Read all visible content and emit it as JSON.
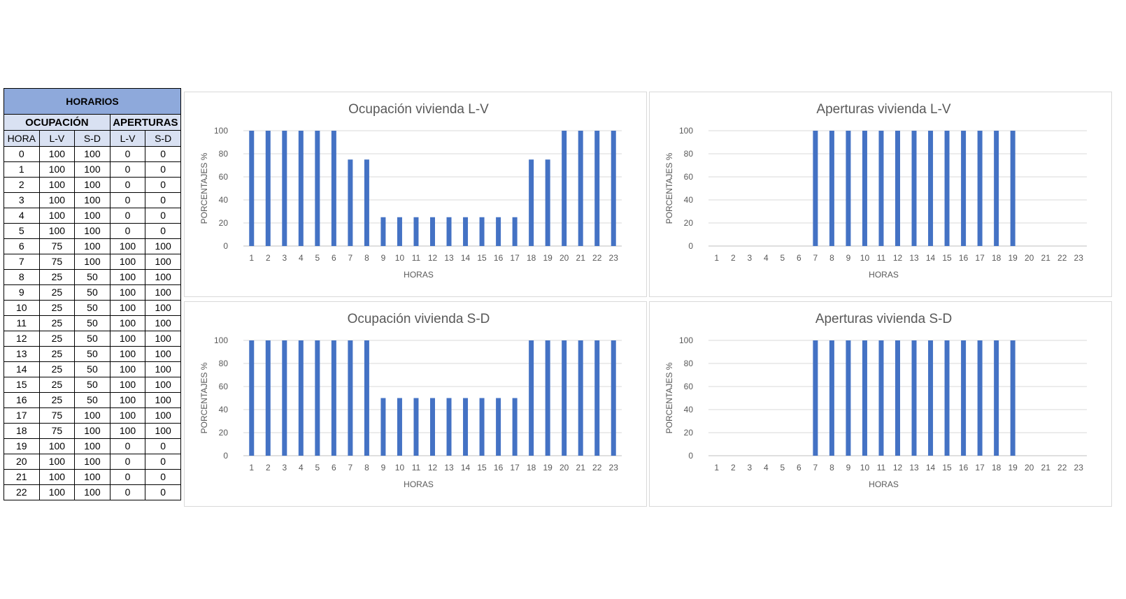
{
  "table": {
    "title": "HORARIOS",
    "groups": [
      "OCUPACIÓN",
      "APERTURAS"
    ],
    "columns": [
      "HORA",
      "L-V",
      "S-D",
      "L-V",
      "S-D"
    ],
    "rows": [
      [
        "0",
        "100",
        "100",
        "0",
        "0"
      ],
      [
        "1",
        "100",
        "100",
        "0",
        "0"
      ],
      [
        "2",
        "100",
        "100",
        "0",
        "0"
      ],
      [
        "3",
        "100",
        "100",
        "0",
        "0"
      ],
      [
        "4",
        "100",
        "100",
        "0",
        "0"
      ],
      [
        "5",
        "100",
        "100",
        "0",
        "0"
      ],
      [
        "6",
        "75",
        "100",
        "100",
        "100"
      ],
      [
        "7",
        "75",
        "100",
        "100",
        "100"
      ],
      [
        "8",
        "25",
        "50",
        "100",
        "100"
      ],
      [
        "9",
        "25",
        "50",
        "100",
        "100"
      ],
      [
        "10",
        "25",
        "50",
        "100",
        "100"
      ],
      [
        "11",
        "25",
        "50",
        "100",
        "100"
      ],
      [
        "12",
        "25",
        "50",
        "100",
        "100"
      ],
      [
        "13",
        "25",
        "50",
        "100",
        "100"
      ],
      [
        "14",
        "25",
        "50",
        "100",
        "100"
      ],
      [
        "15",
        "25",
        "50",
        "100",
        "100"
      ],
      [
        "16",
        "25",
        "50",
        "100",
        "100"
      ],
      [
        "17",
        "75",
        "100",
        "100",
        "100"
      ],
      [
        "18",
        "75",
        "100",
        "100",
        "100"
      ],
      [
        "19",
        "100",
        "100",
        "0",
        "0"
      ],
      [
        "20",
        "100",
        "100",
        "0",
        "0"
      ],
      [
        "21",
        "100",
        "100",
        "0",
        "0"
      ],
      [
        "22",
        "100",
        "100",
        "0",
        "0"
      ]
    ]
  },
  "colors": {
    "bar": "#4472c4",
    "title_header": "#8ea9db",
    "sub_header": "#d9e1f2"
  },
  "chart_data": [
    {
      "id": "ocupacion-lv",
      "type": "bar",
      "title": "Ocupación vivienda L-V",
      "xlabel": "HORAS",
      "ylabel": "PORCENTAJES %",
      "ylim": [
        0,
        100
      ],
      "yticks": [
        0,
        20,
        40,
        60,
        80,
        100
      ],
      "grid": true,
      "categories": [
        "1",
        "2",
        "3",
        "4",
        "5",
        "6",
        "7",
        "8",
        "9",
        "10",
        "11",
        "12",
        "13",
        "14",
        "15",
        "16",
        "17",
        "18",
        "19",
        "20",
        "21",
        "22",
        "23"
      ],
      "values": [
        100,
        100,
        100,
        100,
        100,
        100,
        75,
        75,
        25,
        25,
        25,
        25,
        25,
        25,
        25,
        25,
        25,
        75,
        75,
        100,
        100,
        100,
        100
      ]
    },
    {
      "id": "aperturas-lv",
      "type": "bar",
      "title": "Aperturas vivienda L-V",
      "xlabel": "HORAS",
      "ylabel": "PORCENTAJES %",
      "ylim": [
        0,
        100
      ],
      "yticks": [
        0,
        20,
        40,
        60,
        80,
        100
      ],
      "grid": true,
      "categories": [
        "1",
        "2",
        "3",
        "4",
        "5",
        "6",
        "7",
        "8",
        "9",
        "10",
        "11",
        "12",
        "13",
        "14",
        "15",
        "16",
        "17",
        "18",
        "19",
        "20",
        "21",
        "22",
        "23"
      ],
      "values": [
        0,
        0,
        0,
        0,
        0,
        0,
        100,
        100,
        100,
        100,
        100,
        100,
        100,
        100,
        100,
        100,
        100,
        100,
        100,
        0,
        0,
        0,
        0
      ]
    },
    {
      "id": "ocupacion-sd",
      "type": "bar",
      "title": "Ocupación vivienda S-D",
      "xlabel": "HORAS",
      "ylabel": "PORCENTAJES %",
      "ylim": [
        0,
        100
      ],
      "yticks": [
        0,
        20,
        40,
        60,
        80,
        100
      ],
      "grid": true,
      "categories": [
        "1",
        "2",
        "3",
        "4",
        "5",
        "6",
        "7",
        "8",
        "9",
        "10",
        "11",
        "12",
        "13",
        "14",
        "15",
        "16",
        "17",
        "18",
        "19",
        "20",
        "21",
        "22",
        "23"
      ],
      "values": [
        100,
        100,
        100,
        100,
        100,
        100,
        100,
        100,
        50,
        50,
        50,
        50,
        50,
        50,
        50,
        50,
        50,
        100,
        100,
        100,
        100,
        100,
        100
      ]
    },
    {
      "id": "aperturas-sd",
      "type": "bar",
      "title": "Aperturas vivienda S-D",
      "xlabel": "HORAS",
      "ylabel": "PORCENTAJES %",
      "ylim": [
        0,
        100
      ],
      "yticks": [
        0,
        20,
        40,
        60,
        80,
        100
      ],
      "grid": true,
      "categories": [
        "1",
        "2",
        "3",
        "4",
        "5",
        "6",
        "7",
        "8",
        "9",
        "10",
        "11",
        "12",
        "13",
        "14",
        "15",
        "16",
        "17",
        "18",
        "19",
        "20",
        "21",
        "22",
        "23"
      ],
      "values": [
        0,
        0,
        0,
        0,
        0,
        0,
        100,
        100,
        100,
        100,
        100,
        100,
        100,
        100,
        100,
        100,
        100,
        100,
        100,
        0,
        0,
        0,
        0
      ]
    }
  ]
}
